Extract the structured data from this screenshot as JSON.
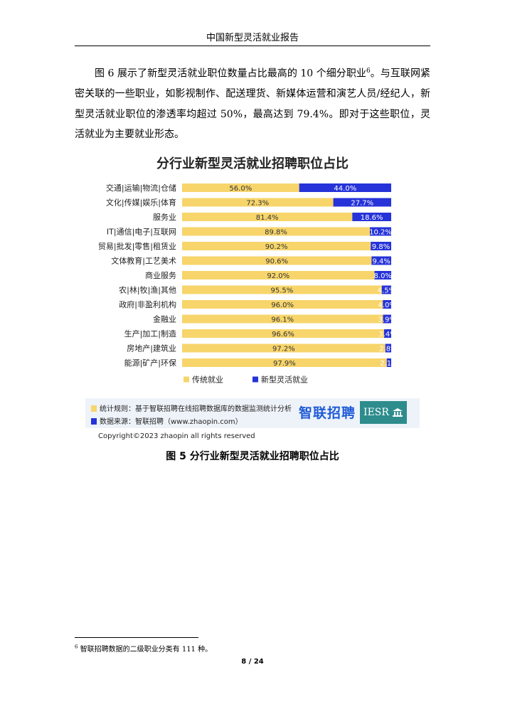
{
  "header": {
    "title": "中国新型灵活就业报告"
  },
  "body": {
    "paragraph_before": "图 6 展示了新型灵活就业职位数量占比最高的 10 个细分职业",
    "footnote_mark": "6",
    "paragraph_after": "。与互联网紧密关联的一些职业，如影视制作、配送理货、新媒体运营和演艺人员/经纪人，新型灵活就业职位的渗透率均超过 50%，最高达到 79.4%。即对于这些职位，灵活就业为主要就业形态。"
  },
  "chart_data": {
    "type": "bar",
    "orientation": "horizontal",
    "stacked": true,
    "percent_stacked": true,
    "title": "分行业新型灵活就业招聘职位占比",
    "categories": [
      "交通|运输|物流|仓储",
      "文化|传媒|娱乐|体育",
      "服务业",
      "IT|通信|电子|互联网",
      "贸易|批发|零售|租赁业",
      "文体教育|工艺美术",
      "商业服务",
      "农|林|牧|渔|其他",
      "政府|非盈利机构",
      "金融业",
      "生产|加工|制造",
      "房地产|建筑业",
      "能源|矿产|环保"
    ],
    "series": [
      {
        "name": "传统就业",
        "color": "#f7d56b",
        "values": [
          56.0,
          72.3,
          81.4,
          89.8,
          90.2,
          90.6,
          92.0,
          95.5,
          96.0,
          96.1,
          96.6,
          97.2,
          97.9
        ]
      },
      {
        "name": "新型灵活就业",
        "color": "#2633d9",
        "values": [
          44.0,
          27.7,
          18.6,
          10.2,
          9.8,
          9.4,
          8.0,
          4.5,
          4.0,
          3.9,
          3.4,
          2.8,
          2.1
        ]
      }
    ],
    "xlim": [
      0,
      100
    ],
    "legend_position": "bottom",
    "grid": false
  },
  "figure_notes": {
    "rule_label": "统计规则：基于智联招聘在线招聘数据库的数据监测统计分析",
    "source_label": "数据来源：智联招聘（www.zhaopin.com）",
    "rule_color": "#f7d56b",
    "source_color": "#2633d9",
    "logo_text": "智联招聘",
    "logo2_text": "IESR",
    "copyright": "Copyright©2023 zhaopin all rights reserved"
  },
  "caption": "图 5  分行业新型灵活就业招聘职位占比",
  "footnote": {
    "mark": "6",
    "text": "智联招聘数据的二级职业分类有 111 种。"
  },
  "page_number": "8 / 24"
}
